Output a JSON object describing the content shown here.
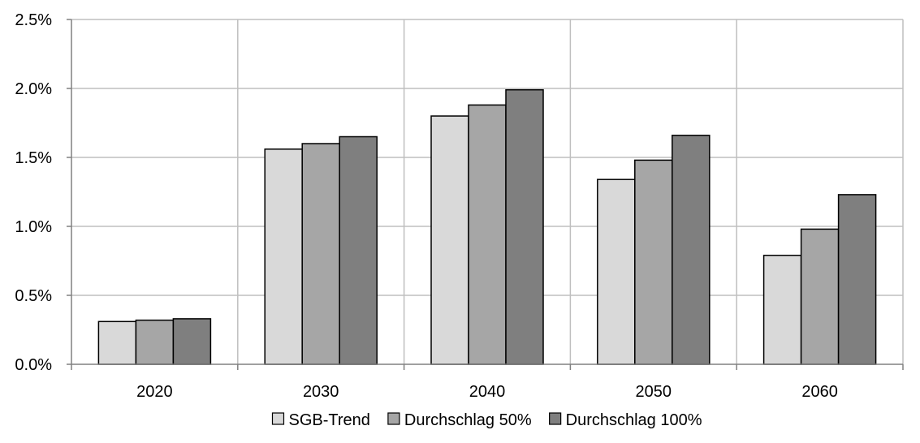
{
  "chart_data": {
    "type": "bar",
    "categories": [
      "2020",
      "2030",
      "2040",
      "2050",
      "2060"
    ],
    "series": [
      {
        "name": "SGB-Trend",
        "values": [
          0.31,
          1.56,
          1.8,
          1.34,
          0.79
        ],
        "color": "#d9d9d9"
      },
      {
        "name": "Durchschlag 50%",
        "values": [
          0.32,
          1.6,
          1.88,
          1.48,
          0.98
        ],
        "color": "#a6a6a6"
      },
      {
        "name": "Durchschlag 100%",
        "values": [
          0.33,
          1.65,
          1.99,
          1.66,
          1.23
        ],
        "color": "#7f7f7f"
      }
    ],
    "y_ticks": [
      "0.0%",
      "0.5%",
      "1.0%",
      "1.5%",
      "2.0%",
      "2.5%"
    ],
    "y_tick_values": [
      0,
      0.5,
      1.0,
      1.5,
      2.0,
      2.5
    ],
    "ylim": [
      0,
      2.5
    ],
    "ylabel": "",
    "xlabel": "",
    "title": "",
    "grid": true,
    "legend_position": "bottom"
  }
}
